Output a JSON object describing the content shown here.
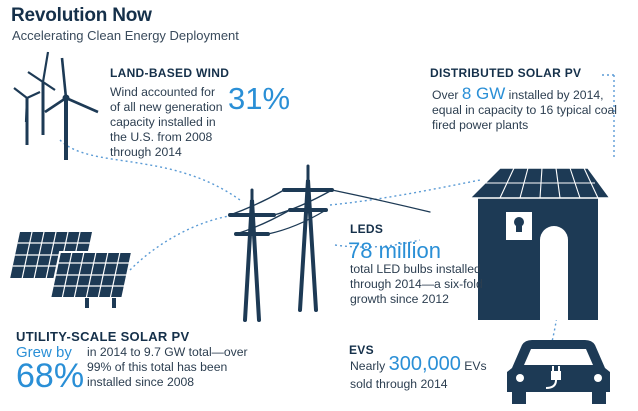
{
  "header": {
    "title": "Revolution Now",
    "subtitle": "Accelerating Clean Energy Deployment"
  },
  "wind": {
    "heading": "LAND-BASED WIND",
    "text": "Wind accounted for of all new generation capacity installed in the U.S. from 2008 through 2014",
    "highlight": "31%"
  },
  "distributed_solar": {
    "heading": "DISTRIBUTED SOLAR PV",
    "prefix": "Over",
    "highlight": "8 GW",
    "text": "installed by 2014, equal in capacity to 16 typical coal fired power plants"
  },
  "leds": {
    "heading": "LEDS",
    "highlight": "78 million",
    "text": "total LED bulbs installed through 2014—a six-fold growth since 2012"
  },
  "utility_solar": {
    "heading": "UTILITY-SCALE SOLAR PV",
    "grew_by": "Grew by",
    "highlight": "68%",
    "text": "in 2014 to 9.7 GW total—over 99% of this total has been installed since 2008"
  },
  "evs": {
    "heading": "EVS",
    "prefix": "Nearly",
    "highlight": "300,000",
    "suffix": "EVs",
    "text": "sold through 2014"
  },
  "colors": {
    "navy": "#1d3a55",
    "accent_blue": "#2a8fd6",
    "dotted_line": "#5b9bd5"
  },
  "icons": [
    "wind-turbine-icon",
    "solar-panel-icon",
    "transmission-tower-icon",
    "house-icon",
    "led-bulb-icon",
    "electric-car-icon",
    "plug-icon"
  ]
}
